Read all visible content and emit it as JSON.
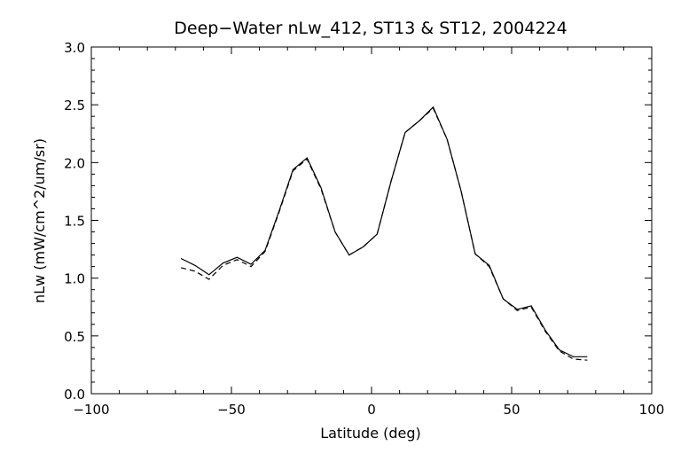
{
  "chart_data": {
    "type": "line",
    "title": "Deep−Water nLw_412, ST13 & ST12, 2004224",
    "xlabel": "Latitude (deg)",
    "ylabel": "nLw (mW/cm^2/um/sr)",
    "xlim": [
      -100,
      100
    ],
    "ylim": [
      0.0,
      3.0
    ],
    "xticks": [
      -100,
      -50,
      0,
      50,
      100
    ],
    "xtick_labels": [
      "−100",
      "−50",
      "0",
      "50",
      "100"
    ],
    "yticks": [
      0.0,
      0.5,
      1.0,
      1.5,
      2.0,
      2.5,
      3.0
    ],
    "ytick_labels": [
      "0.0",
      "0.5",
      "1.0",
      "1.5",
      "2.0",
      "2.5",
      "3.0"
    ],
    "grid": false,
    "series": [
      {
        "style": "solid",
        "color": "#000000",
        "x": [
          -68,
          -63,
          -58,
          -53,
          -48,
          -43,
          -38,
          -33,
          -28,
          -23,
          -18,
          -13,
          -8,
          -3,
          2,
          7,
          12,
          17,
          22,
          27,
          32,
          37,
          42,
          47,
          52,
          57,
          62,
          67,
          72,
          77
        ],
        "y": [
          1.17,
          1.11,
          1.03,
          1.13,
          1.18,
          1.12,
          1.24,
          1.58,
          1.94,
          2.04,
          1.78,
          1.4,
          1.2,
          1.27,
          1.38,
          1.84,
          2.26,
          2.36,
          2.48,
          2.2,
          1.75,
          1.21,
          1.11,
          0.82,
          0.73,
          0.76,
          0.55,
          0.38,
          0.32,
          0.32
        ]
      },
      {
        "style": "dashed",
        "color": "#000000",
        "x": [
          -68,
          -63,
          -58,
          -53,
          -48,
          -43,
          -38,
          -33,
          -28,
          -23,
          -18,
          -13,
          -8,
          -3,
          2,
          7,
          12,
          17,
          22,
          27,
          32,
          37,
          42,
          47,
          52,
          57,
          62,
          67,
          72,
          77
        ],
        "y": [
          1.09,
          1.06,
          0.99,
          1.11,
          1.16,
          1.1,
          1.23,
          1.57,
          1.93,
          2.03,
          1.77,
          1.4,
          1.2,
          1.27,
          1.38,
          1.84,
          2.26,
          2.36,
          2.47,
          2.2,
          1.75,
          1.21,
          1.1,
          0.82,
          0.72,
          0.75,
          0.54,
          0.37,
          0.3,
          0.29
        ]
      }
    ]
  }
}
